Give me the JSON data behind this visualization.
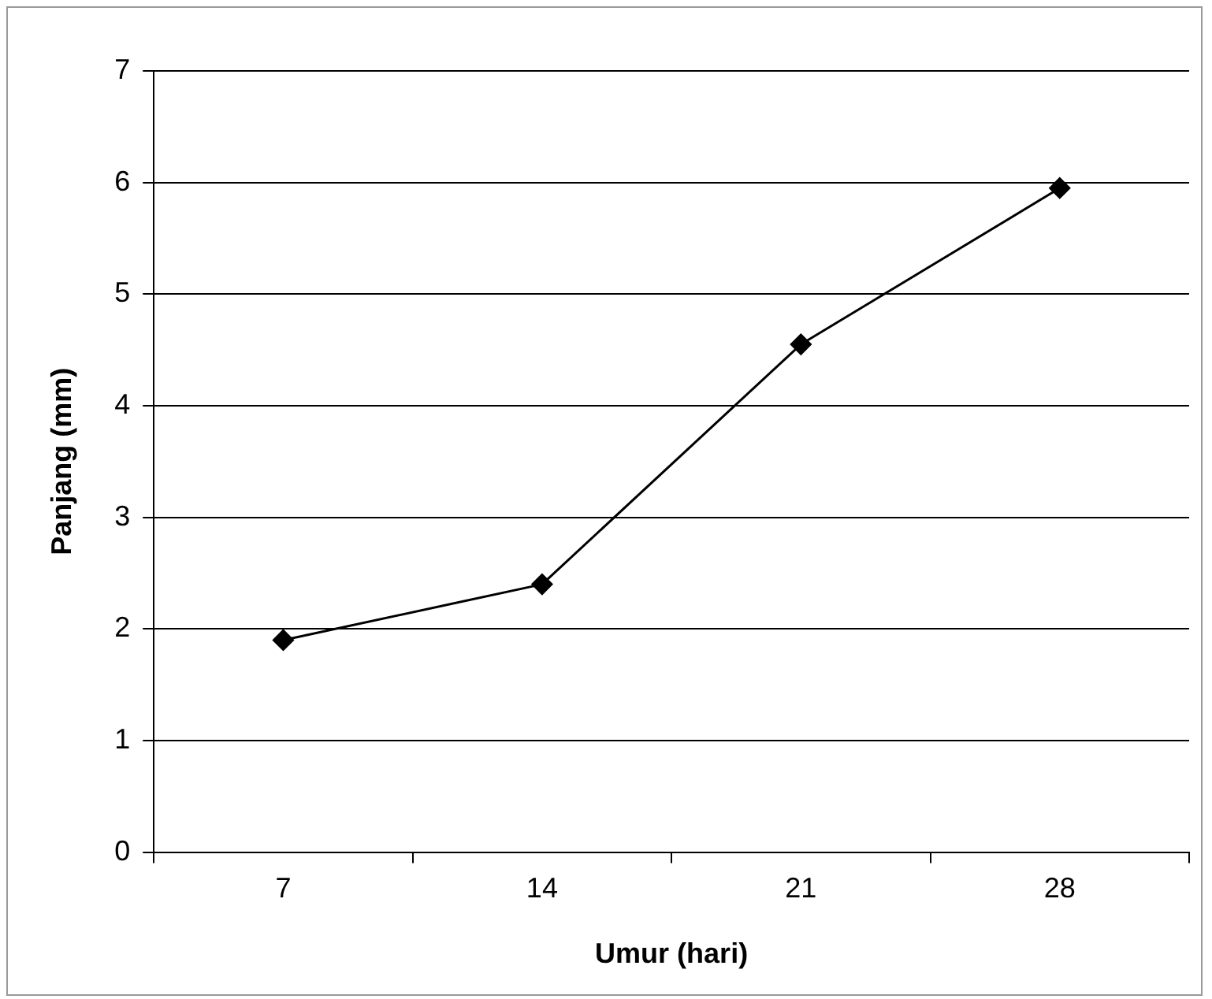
{
  "chart_data": {
    "type": "line",
    "xlabel": "Umur (hari)",
    "ylabel": "Panjang (mm)",
    "categories": [
      "7",
      "14",
      "21",
      "28"
    ],
    "series": [
      {
        "color": "#000000",
        "values": [
          1.9,
          2.4,
          4.55,
          5.95
        ]
      }
    ],
    "ylim": [
      0,
      7
    ],
    "yticks": [
      0,
      1,
      2,
      3,
      4,
      5,
      6,
      7
    ],
    "grid": "y",
    "legend": false,
    "marker": "diamond",
    "line_style": "solid"
  }
}
